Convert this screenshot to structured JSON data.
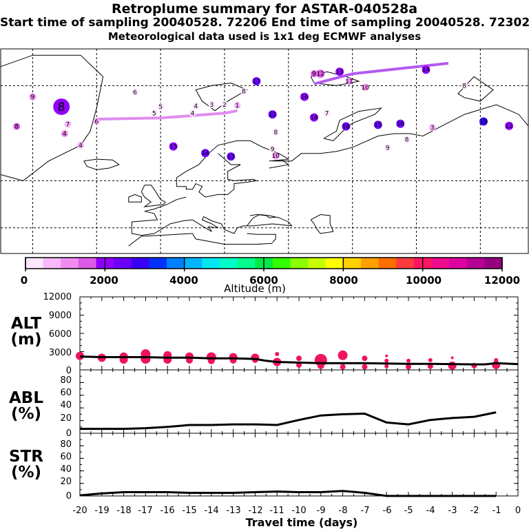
{
  "header": {
    "title": "Retroplume summary for ASTAR-040528a",
    "sampling": "Start time of sampling 20040528. 72206     End time of sampling 20040528. 72302",
    "meteo": "Meteorological data used is 1x1 deg ECMWF analyses"
  },
  "map": {
    "cluster_labels": [
      {
        "t": "8",
        "day": 8,
        "lon": -31,
        "lat": 77.2,
        "alt": 2000,
        "big": true
      },
      {
        "t": "7",
        "day": 7,
        "lon": -29,
        "lat": 74.3,
        "alt": 500
      },
      {
        "t": "6",
        "day": 6,
        "lon": -20,
        "lat": 74.8,
        "alt": 600
      },
      {
        "t": "6",
        "day": 6,
        "lon": -8,
        "lat": 79.2,
        "alt": 100
      },
      {
        "t": "5",
        "day": 5,
        "lon": -2,
        "lat": 76.2,
        "alt": 400
      },
      {
        "t": "5",
        "day": 5,
        "lon": 0,
        "lat": 77.2,
        "alt": 300
      },
      {
        "t": "4",
        "day": 4,
        "lon": 10,
        "lat": 76.2,
        "alt": 400
      },
      {
        "t": "4",
        "day": 4,
        "lon": 11,
        "lat": 77.3,
        "alt": 300
      },
      {
        "t": "3",
        "day": 3,
        "lon": 16,
        "lat": 77.5,
        "alt": 300
      },
      {
        "t": "2",
        "day": 2,
        "lon": 20,
        "lat": 77.5,
        "alt": 400
      },
      {
        "t": "1",
        "day": 1,
        "lon": 24,
        "lat": 77.4,
        "alt": 600
      },
      {
        "t": "8",
        "day": 8,
        "lon": 26,
        "lat": 79.3,
        "alt": 100
      },
      {
        "t": "17",
        "day": 17,
        "lon": 30,
        "lat": 80.5,
        "alt": 2500
      },
      {
        "t": "12",
        "day": 12,
        "lon": 35,
        "lat": 76,
        "alt": 2600
      },
      {
        "t": "16",
        "day": 16,
        "lon": 45,
        "lat": 78.6,
        "alt": 2200
      },
      {
        "t": "9",
        "day": 9,
        "lon": 48,
        "lat": 81.3,
        "alt": 1500
      },
      {
        "t": "12",
        "day": 12,
        "lon": 50,
        "lat": 81.3,
        "alt": 1700
      },
      {
        "t": "13",
        "day": 13,
        "lon": 56,
        "lat": 81.5,
        "alt": 1900
      },
      {
        "t": "11",
        "day": 11,
        "lon": 59,
        "lat": 80.5,
        "alt": 1200
      },
      {
        "t": "10",
        "day": 10,
        "lon": 64,
        "lat": 79.8,
        "alt": 1100
      },
      {
        "t": "14",
        "day": 14,
        "lon": 83,
        "lat": 81.7,
        "alt": 1800
      },
      {
        "t": "8",
        "day": 8,
        "lon": 95,
        "lat": 80,
        "alt": 200
      },
      {
        "t": "7",
        "day": 7,
        "lon": 52,
        "lat": 76.2,
        "alt": 100
      },
      {
        "t": "18",
        "day": 18,
        "lon": 48,
        "lat": 75.5,
        "alt": 2200
      },
      {
        "t": "8",
        "day": 8,
        "lon": 36,
        "lat": 72.8,
        "alt": 300
      },
      {
        "t": "16",
        "day": 16,
        "lon": 58,
        "lat": 73.9,
        "alt": 2300
      },
      {
        "t": "15",
        "day": 15,
        "lon": 68,
        "lat": 74.2,
        "alt": 2400
      },
      {
        "t": "16",
        "day": 16,
        "lon": 75,
        "lat": 74.4,
        "alt": 2600
      },
      {
        "t": "3",
        "day": 3,
        "lon": 85,
        "lat": 73.7,
        "alt": 600
      },
      {
        "t": "19",
        "day": 19,
        "lon": 101,
        "lat": 74.8,
        "alt": 2800
      },
      {
        "t": "11",
        "day": 11,
        "lon": 109,
        "lat": 74,
        "alt": 1900
      },
      {
        "t": "8",
        "day": 8,
        "lon": 77,
        "lat": 71.3,
        "alt": 100
      },
      {
        "t": "9",
        "day": 9,
        "lon": 71,
        "lat": 69.4,
        "alt": 100
      },
      {
        "t": "15",
        "day": 15,
        "lon": 4,
        "lat": 69.7,
        "alt": 2200
      },
      {
        "t": "14",
        "day": 14,
        "lon": 14,
        "lat": 68.1,
        "alt": 2400
      },
      {
        "t": "13",
        "day": 13,
        "lon": 22,
        "lat": 67.2,
        "alt": 2500
      },
      {
        "t": "9",
        "day": 9,
        "lon": 35,
        "lat": 69.1,
        "alt": 300
      },
      {
        "t": "10",
        "day": 10,
        "lon": 36,
        "lat": 67.4,
        "alt": 900
      },
      {
        "t": "9",
        "day": 9,
        "lon": -40,
        "lat": 78.6,
        "alt": 1200
      },
      {
        "t": "8",
        "day": 8,
        "lon": -45,
        "lat": 73.9,
        "alt": 1500
      },
      {
        "t": "4",
        "day": 4,
        "lon": -30,
        "lat": 72.5,
        "alt": 1200
      },
      {
        "t": "4",
        "day": 4,
        "lon": -25,
        "lat": 70,
        "alt": 800
      }
    ]
  },
  "colorbar": {
    "tick_labels": [
      "0",
      "2000",
      "4000",
      "6000",
      "8000",
      "10000",
      "12000"
    ],
    "label": "Altitude (m)",
    "colors": [
      "#ffe6ff",
      "#f9b8f9",
      "#f08cf0",
      "#dc5ae6",
      "#9100ff",
      "#6b00ff",
      "#3a00ff",
      "#0032ff",
      "#0080ff",
      "#00b4ff",
      "#00e6f0",
      "#00ffc8",
      "#00ff8c",
      "#00eb46",
      "#32ff00",
      "#8cff00",
      "#c8ff00",
      "#ffff00",
      "#ffd200",
      "#ffa000",
      "#ff6e00",
      "#ff3c3c",
      "#ff1464",
      "#f00a8c",
      "#dc00a0",
      "#b40096",
      "#96007f"
    ]
  },
  "panels": {
    "alt": {
      "label1": "ALT",
      "label2": "(m)",
      "yticks": [
        "12000",
        "9000",
        "6000",
        "3000",
        "0"
      ]
    },
    "abl": {
      "label1": "ABL",
      "label2": "(%)",
      "yticks": [
        "80",
        "60",
        "40",
        "20",
        "0"
      ]
    },
    "str": {
      "label1": "STR",
      "label2": "(%)",
      "yticks": [
        "80",
        "60",
        "40",
        "20",
        "0"
      ]
    }
  },
  "xaxis": {
    "ticks": [
      "-20",
      "-19",
      "-18",
      "-17",
      "-16",
      "-15",
      "-14",
      "-13",
      "-12",
      "-11",
      "-10",
      "-9",
      "-8",
      "-7",
      "-6",
      "-5",
      "-4",
      "-3",
      "-2",
      "-1",
      "0"
    ],
    "label": "Travel time (days)"
  },
  "chart_data": [
    {
      "type": "line",
      "title": "ALT",
      "ylabel": "ALT (m)",
      "xlabel": "Travel time (days)",
      "xlim": [
        -20,
        0
      ],
      "ylim": [
        0,
        12000
      ],
      "x": [
        -20,
        -19,
        -18,
        -17,
        -16,
        -15,
        -14,
        -13,
        -12,
        -11.5,
        -11,
        -10,
        -9,
        -8,
        -7,
        -6,
        -5,
        -4,
        -3,
        -2,
        -1.5,
        -1,
        0
      ],
      "values": [
        2200,
        2100,
        2100,
        2100,
        2000,
        2000,
        1900,
        1900,
        1800,
        1500,
        1300,
        1200,
        1100,
        1100,
        1100,
        1050,
        1000,
        1000,
        950,
        900,
        900,
        1100,
        950
      ],
      "bubbles": [
        {
          "x": -20,
          "y": 2300,
          "size": 6
        },
        {
          "x": -19,
          "y": 2000,
          "size": 6
        },
        {
          "x": -18,
          "y": 2200,
          "size": 6
        },
        {
          "x": -18,
          "y": 1700,
          "size": 6
        },
        {
          "x": -17,
          "y": 2600,
          "size": 7
        },
        {
          "x": -17,
          "y": 1800,
          "size": 7
        },
        {
          "x": -16,
          "y": 2400,
          "size": 6
        },
        {
          "x": -16,
          "y": 1700,
          "size": 6
        },
        {
          "x": -15,
          "y": 2200,
          "size": 6
        },
        {
          "x": -15,
          "y": 1600,
          "size": 5
        },
        {
          "x": -14,
          "y": 2100,
          "size": 7
        },
        {
          "x": -14,
          "y": 1500,
          "size": 5
        },
        {
          "x": -13,
          "y": 2100,
          "size": 6
        },
        {
          "x": -13,
          "y": 1600,
          "size": 5
        },
        {
          "x": -12,
          "y": 2000,
          "size": 6
        },
        {
          "x": -12,
          "y": 1600,
          "size": 4
        },
        {
          "x": -11,
          "y": 2600,
          "size": 3
        },
        {
          "x": -11,
          "y": 1300,
          "size": 6
        },
        {
          "x": -10,
          "y": 1900,
          "size": 4
        },
        {
          "x": -10,
          "y": 800,
          "size": 4
        },
        {
          "x": -9,
          "y": 1600,
          "size": 9
        },
        {
          "x": -9,
          "y": 700,
          "size": 5
        },
        {
          "x": -8,
          "y": 2400,
          "size": 7
        },
        {
          "x": -8,
          "y": 500,
          "size": 4
        },
        {
          "x": -7,
          "y": 1900,
          "size": 4
        },
        {
          "x": -7,
          "y": 500,
          "size": 4
        },
        {
          "x": -6,
          "y": 2300,
          "size": 2
        },
        {
          "x": -6,
          "y": 1500,
          "size": 3
        },
        {
          "x": -6,
          "y": 600,
          "size": 3
        },
        {
          "x": -5,
          "y": 1500,
          "size": 3
        },
        {
          "x": -5,
          "y": 500,
          "size": 4
        },
        {
          "x": -4,
          "y": 1600,
          "size": 3
        },
        {
          "x": -4,
          "y": 600,
          "size": 4
        },
        {
          "x": -3,
          "y": 2000,
          "size": 2
        },
        {
          "x": -3,
          "y": 700,
          "size": 6
        },
        {
          "x": -2,
          "y": 700,
          "size": 4
        },
        {
          "x": -1,
          "y": 1600,
          "size": 3
        },
        {
          "x": -1,
          "y": 800,
          "size": 6
        }
      ]
    },
    {
      "type": "line",
      "title": "ABL",
      "ylabel": "ABL (%)",
      "xlabel": "Travel time (days)",
      "xlim": [
        -20,
        0
      ],
      "ylim": [
        0,
        100
      ],
      "x": [
        -20,
        -19,
        -18,
        -17,
        -16,
        -15,
        -14,
        -13,
        -12,
        -11,
        -10,
        -9,
        -8,
        -7,
        -6,
        -5,
        -4,
        -3,
        -2,
        -1
      ],
      "values": [
        7,
        7,
        7,
        8,
        10,
        13,
        13,
        14,
        14,
        13,
        21,
        28,
        30,
        31,
        17,
        14,
        21,
        24,
        26,
        33
      ]
    },
    {
      "type": "line",
      "title": "STR",
      "ylabel": "STR (%)",
      "xlabel": "Travel time (days)",
      "xlim": [
        -20,
        0
      ],
      "ylim": [
        0,
        100
      ],
      "x": [
        -20,
        -19,
        -18,
        -17,
        -16,
        -15,
        -14,
        -13,
        -12,
        -11,
        -10,
        -9,
        -8,
        -7,
        -6,
        -5,
        -4,
        -3,
        -2,
        -1
      ],
      "values": [
        1,
        4,
        6,
        6,
        6,
        5,
        5,
        5,
        6,
        7,
        6,
        6,
        8,
        5,
        0,
        0,
        0,
        0,
        0,
        0
      ]
    }
  ]
}
